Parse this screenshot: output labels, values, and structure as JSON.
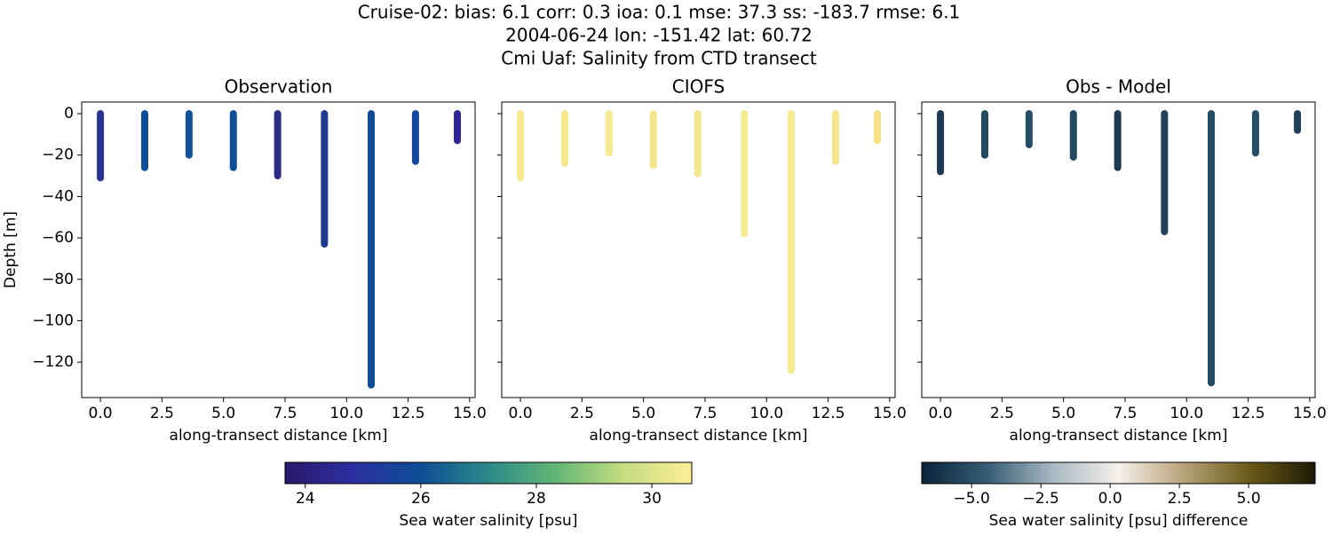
{
  "title": [
    "Cruise-02: bias: 6.1  corr: 0.3  ioa: 0.1  mse: 37.3  ss: -183.7  rmse: 6.1",
    "2004-06-24 lon: -151.42 lat: 60.72",
    "Cmi Uaf: Salinity from CTD transect"
  ],
  "chart_data": [
    {
      "type": "profiles",
      "title": "Observation",
      "xlabel": "along-transect distance [km]",
      "ylabel": "Depth [m]",
      "x": [
        0,
        1.8,
        3.6,
        5.4,
        7.2,
        9.1,
        11.0,
        12.8,
        14.5
      ],
      "values": [
        -31,
        -26,
        -20,
        -26,
        -30,
        -63,
        -131,
        -23,
        -13
      ],
      "colors": [
        "#2a3290",
        "#0f4f97",
        "#0f5299",
        "#0e4f97",
        "#2b2c85",
        "#1f3b8f",
        "#0f4c95",
        "#1148a0",
        "#2d2595"
      ],
      "xlim": [
        -0.76,
        15.22
      ],
      "ylim": [
        -137.1,
        5.6
      ],
      "xticks": [
        {
          "value": 0,
          "label": "0.0"
        },
        {
          "value": 2.5,
          "label": "2.5"
        },
        {
          "value": 5,
          "label": "5.0"
        },
        {
          "value": 7.5,
          "label": "7.5"
        },
        {
          "value": 10,
          "label": "10.0"
        },
        {
          "value": 12.5,
          "label": "12.5"
        },
        {
          "value": 15,
          "label": "15.0"
        }
      ],
      "yticks": [
        0,
        {
          "value": -20,
          "label": "−20"
        },
        {
          "value": -40,
          "label": "−40"
        },
        {
          "value": -60,
          "label": "−60"
        },
        {
          "value": -80,
          "label": "−80"
        },
        {
          "value": -100,
          "label": "−100"
        },
        {
          "value": -120,
          "label": "−120"
        }
      ],
      "colorbar": {
        "label": "Sea water salinity [psu]",
        "lim": [
          23.65,
          30.69
        ],
        "ticks": [
          24,
          26,
          28,
          30
        ],
        "colors": [
          "#2a186c",
          "#2c2fa0",
          "#0e4e96",
          "#2d8a8a",
          "#62b776",
          "#c5dc7f",
          "#fdee99"
        ]
      }
    },
    {
      "type": "profiles",
      "title": "CIOFS",
      "xlabel": "along-transect distance [km]",
      "x": [
        0,
        1.8,
        3.6,
        5.4,
        7.2,
        9.1,
        11.0,
        12.8,
        14.5
      ],
      "values": [
        -31,
        -24,
        -19,
        -25,
        -29,
        -58,
        -124,
        -23,
        -13
      ],
      "colors": [
        "#f6ea92",
        "#f5e68e",
        "#f6ea92",
        "#f5e68e",
        "#f5e68e",
        "#f6ea92",
        "#f6ea92",
        "#f5e68e",
        "#f3e284"
      ],
      "xlim": [
        -0.76,
        15.22
      ],
      "xticks": [
        {
          "value": 0,
          "label": "0.0"
        },
        {
          "value": 2.5,
          "label": "2.5"
        },
        {
          "value": 5,
          "label": "5.0"
        },
        {
          "value": 7.5,
          "label": "7.5"
        },
        {
          "value": 10,
          "label": "10.0"
        },
        {
          "value": 12.5,
          "label": "12.5"
        },
        {
          "value": 15,
          "label": "15.0"
        }
      ]
    },
    {
      "type": "profiles",
      "title": "Obs - Model",
      "xlabel": "along-transect distance [km]",
      "x": [
        0,
        1.8,
        3.6,
        5.4,
        7.2,
        9.1,
        11.0,
        12.8,
        14.5
      ],
      "values": [
        -28,
        -20,
        -15,
        -21,
        -26,
        -57,
        -130,
        -19,
        -8
      ],
      "colors": [
        "#1c3a52",
        "#234a63",
        "#254d66",
        "#234a63",
        "#1c3a52",
        "#1f4058",
        "#234a63",
        "#254d66",
        "#1f4058"
      ],
      "xlim": [
        -0.76,
        15.22
      ],
      "xticks": [
        {
          "value": 0,
          "label": "0.0"
        },
        {
          "value": 2.5,
          "label": "2.5"
        },
        {
          "value": 5,
          "label": "5.0"
        },
        {
          "value": 7.5,
          "label": "7.5"
        },
        {
          "value": 10,
          "label": "10.0"
        },
        {
          "value": 12.5,
          "label": "12.5"
        },
        {
          "value": 15,
          "label": "15.0"
        }
      ],
      "colorbar": {
        "label": "Sea water salinity [psu] difference",
        "lim": [
          -6.8,
          7.4
        ],
        "ticks": [
          {
            "value": -5,
            "label": "−5.0"
          },
          {
            "value": -2.5,
            "label": "−2.5"
          },
          {
            "value": 0,
            "label": "0.0"
          },
          {
            "value": 2.5,
            "label": "2.5"
          },
          {
            "value": 5,
            "label": "5.0"
          }
        ],
        "colors": [
          "#08243b",
          "#365d75",
          "#a9b8c2",
          "#f5f0ea",
          "#b8a178",
          "#6b5a1a",
          "#1c1a06"
        ]
      }
    }
  ]
}
